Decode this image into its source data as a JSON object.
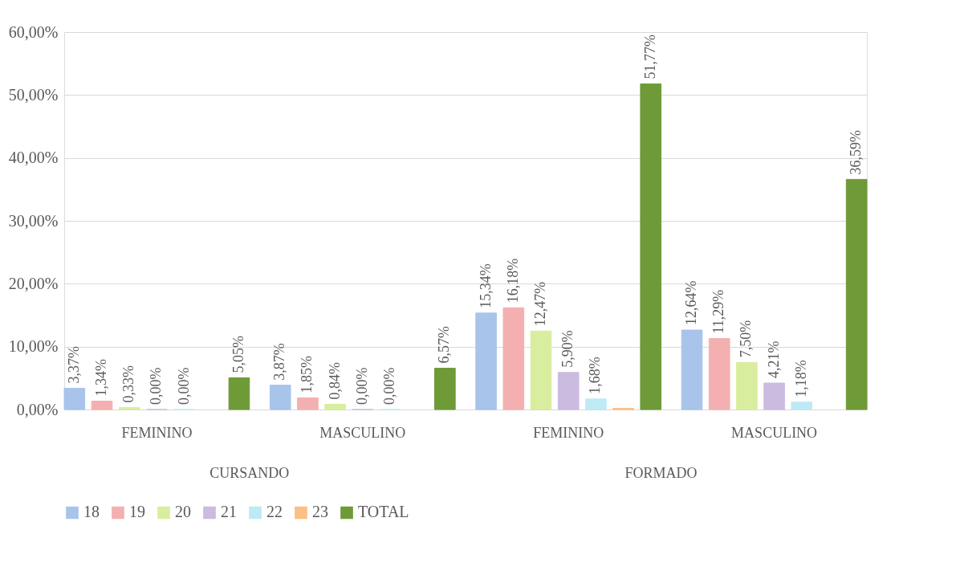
{
  "chart_data": {
    "type": "bar",
    "categories": [
      "FEMININO",
      "MASCULINO",
      "FEMININO",
      "MASCULINO"
    ],
    "annotations": [
      "CURSANDO",
      "FORMADO"
    ],
    "series": [
      {
        "name": "18",
        "color": "#a9c4eb",
        "values": [
          3.37,
          3.87,
          15.34,
          12.64
        ],
        "value_labels": [
          "3,37%",
          "3,87%",
          "15,34%",
          "12,64%"
        ]
      },
      {
        "name": "19",
        "color": "#f4b0b0",
        "values": [
          1.34,
          1.85,
          16.18,
          11.29
        ],
        "value_labels": [
          "1,34%",
          "1,85%",
          "16,18%",
          "11,29%"
        ]
      },
      {
        "name": "20",
        "color": "#d8ee9e",
        "values": [
          0.33,
          0.84,
          12.47,
          7.5
        ],
        "value_labels": [
          "0,33%",
          "0,84%",
          "12,47%",
          "7,50%"
        ]
      },
      {
        "name": "21",
        "color": "#cbbbe0",
        "values": [
          0,
          0,
          5.9,
          4.21
        ],
        "value_labels": [
          "0,00%",
          "0,00%",
          "5,90%",
          "4,21%"
        ]
      },
      {
        "name": "22",
        "color": "#bdeaf5",
        "values": [
          0,
          0,
          1.68,
          1.18
        ],
        "value_labels": [
          "0,00%",
          "0,00%",
          "1,68%",
          "1,18%"
        ]
      },
      {
        "name": "23",
        "color": "#fbbf85",
        "values": [
          null,
          null,
          0.2,
          null
        ],
        "value_labels": [
          null,
          null,
          null,
          null
        ]
      },
      {
        "name": "TOTAL",
        "color": "#6f9a38",
        "values": [
          5.05,
          6.57,
          51.77,
          36.59
        ],
        "value_labels": [
          "5,05%",
          "6,57%",
          "51,77%",
          "36,59%"
        ]
      }
    ],
    "ylim": [
      0,
      60
    ],
    "yticks": [
      {
        "value": 0,
        "label": "0,00%"
      },
      {
        "value": 10,
        "label": "10,00%"
      },
      {
        "value": 20,
        "label": "20,00%"
      },
      {
        "value": 30,
        "label": "30,00%"
      },
      {
        "value": 40,
        "label": "40,00%"
      },
      {
        "value": 50,
        "label": "50,00%"
      },
      {
        "value": 60,
        "label": "60,00%"
      }
    ],
    "grid": "y",
    "legend": "bottom"
  }
}
